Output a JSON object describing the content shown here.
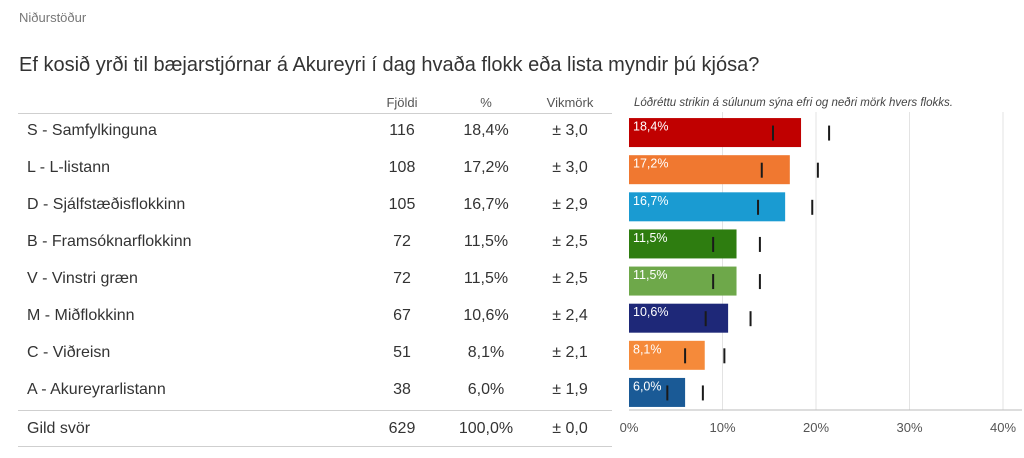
{
  "kicker": "Niðurstöður",
  "question": "Ef kosið yrði til bæjarstjórnar á Akureyri í dag hvaða flokk eða lista myndir þú kjósa?",
  "table": {
    "headers": {
      "count": "Fjöldi",
      "percent": "%",
      "margin": "Vikmörk"
    },
    "rows": [
      {
        "label": "S - Samfylkinguna",
        "count": "116",
        "percent": "18,4%",
        "margin": "± 3,0"
      },
      {
        "label": "L - L-listann",
        "count": "108",
        "percent": "17,2%",
        "margin": "± 3,0"
      },
      {
        "label": "D - Sjálfstæðisflokkinn",
        "count": "105",
        "percent": "16,7%",
        "margin": "± 2,9"
      },
      {
        "label": "B - Framsóknarflokkinn",
        "count": "72",
        "percent": "11,5%",
        "margin": "± 2,5"
      },
      {
        "label": "V - Vinstri græn",
        "count": "72",
        "percent": "11,5%",
        "margin": "± 2,5"
      },
      {
        "label": "M - Miðflokkinn",
        "count": "67",
        "percent": "10,6%",
        "margin": "± 2,4"
      },
      {
        "label": "C - Viðreisn",
        "count": "51",
        "percent": "8,1%",
        "margin": "± 2,1"
      },
      {
        "label": "A - Akureyrarlistann",
        "count": "38",
        "percent": "6,0%",
        "margin": "± 1,9"
      }
    ],
    "total": {
      "label": "Gild svör",
      "count": "629",
      "percent": "100,0%",
      "margin": "± 0,0"
    }
  },
  "chart_note": "Lóðréttu strikin á súlunum sýna efri og neðri mörk hvers flokks.",
  "chart_data": {
    "type": "bar",
    "orientation": "horizontal",
    "categories": [
      "S - Samfylkinguna",
      "L - L-listann",
      "D - Sjálfstæðisflokkinn",
      "B - Framsóknarflokkinn",
      "V - Vinstri græn",
      "M - Miðflokkinn",
      "C - Viðreisn",
      "A - Akureyrarlistann"
    ],
    "values": [
      18.4,
      17.2,
      16.7,
      11.5,
      11.5,
      10.6,
      8.1,
      6.0
    ],
    "value_labels": [
      "18,4%",
      "17,2%",
      "16,7%",
      "11,5%",
      "11,5%",
      "10,6%",
      "8,1%",
      "6,0%"
    ],
    "lower_bounds": [
      15.4,
      14.2,
      13.8,
      9.0,
      9.0,
      8.2,
      6.0,
      4.1
    ],
    "upper_bounds": [
      21.4,
      20.2,
      19.6,
      14.0,
      14.0,
      13.0,
      10.2,
      7.9
    ],
    "colors": [
      "#c00000",
      "#f07830",
      "#1a9bd2",
      "#2e7d10",
      "#6ea84a",
      "#1e2878",
      "#f58a3a",
      "#1a5a96"
    ],
    "xlim": [
      0,
      40
    ],
    "ticks": [
      0,
      10,
      20,
      30,
      40
    ],
    "tick_labels": [
      "0%",
      "10%",
      "20%",
      "30%",
      "40%"
    ],
    "grid": true
  }
}
